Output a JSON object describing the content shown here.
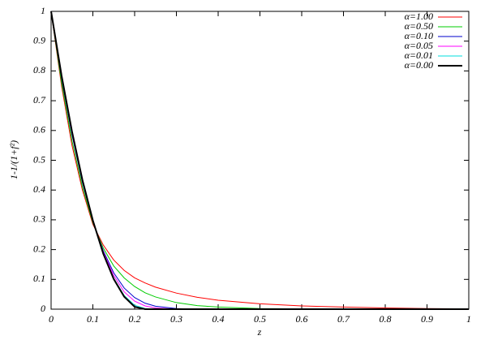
{
  "chart_data": {
    "type": "line",
    "xlabel": "z",
    "ylabel": "1-1/(1+f²)",
    "x": [
      0,
      0.025,
      0.05,
      0.075,
      0.1,
      0.125,
      0.15,
      0.175,
      0.2,
      0.225,
      0.25,
      0.3,
      0.35,
      0.4,
      0.5,
      0.6,
      0.7,
      0.8,
      0.9,
      1
    ],
    "series": [
      {
        "name": "α=1.00",
        "color": "#ff0000",
        "linewidth": 1,
        "values": [
          1,
          0.75,
          0.55,
          0.4,
          0.285,
          0.215,
          0.165,
          0.13,
          0.105,
          0.088,
          0.074,
          0.054,
          0.04,
          0.03,
          0.018,
          0.011,
          0.007,
          0.004,
          0.002,
          0.001
        ]
      },
      {
        "name": "α=0.50",
        "color": "#00cc00",
        "linewidth": 1,
        "values": [
          1,
          0.76,
          0.565,
          0.41,
          0.29,
          0.205,
          0.145,
          0.105,
          0.076,
          0.055,
          0.041,
          0.022,
          0.012,
          0.007,
          0.002,
          0.001,
          0,
          0,
          0,
          0
        ]
      },
      {
        "name": "α=0.10",
        "color": "#0000cc",
        "linewidth": 1,
        "values": [
          1,
          0.775,
          0.585,
          0.425,
          0.295,
          0.196,
          0.122,
          0.071,
          0.039,
          0.02,
          0.01,
          0.002,
          0,
          0,
          0,
          0,
          0,
          0,
          0,
          0
        ]
      },
      {
        "name": "α=0.05",
        "color": "#ff00ff",
        "linewidth": 1,
        "values": [
          1,
          0.78,
          0.59,
          0.43,
          0.298,
          0.192,
          0.113,
          0.058,
          0.027,
          0.011,
          0.004,
          0,
          0,
          0,
          0,
          0,
          0,
          0,
          0,
          0
        ]
      },
      {
        "name": "α=0.01",
        "color": "#00dddd",
        "linewidth": 1,
        "values": [
          1,
          0.785,
          0.597,
          0.435,
          0.299,
          0.188,
          0.104,
          0.046,
          0.013,
          0.002,
          0,
          0,
          0,
          0,
          0,
          0,
          0,
          0,
          0,
          0
        ]
      },
      {
        "name": "α=0.00",
        "color": "#000000",
        "linewidth": 2,
        "values": [
          1,
          0.785,
          0.597,
          0.434,
          0.298,
          0.186,
          0.101,
          0.042,
          0.008,
          0,
          0,
          0,
          0,
          0,
          0,
          0,
          0,
          0,
          0,
          0
        ]
      }
    ],
    "xlim": [
      0,
      1
    ],
    "xticks": [
      0,
      0.1,
      0.2,
      0.3,
      0.4,
      0.5,
      0.6,
      0.7,
      0.8,
      0.9,
      1
    ],
    "ylim": [
      0,
      1
    ],
    "yticks": [
      0,
      0.1,
      0.2,
      0.3,
      0.4,
      0.5,
      0.6,
      0.7,
      0.8,
      0.9,
      1
    ],
    "grid": false,
    "legend": "top-right"
  }
}
